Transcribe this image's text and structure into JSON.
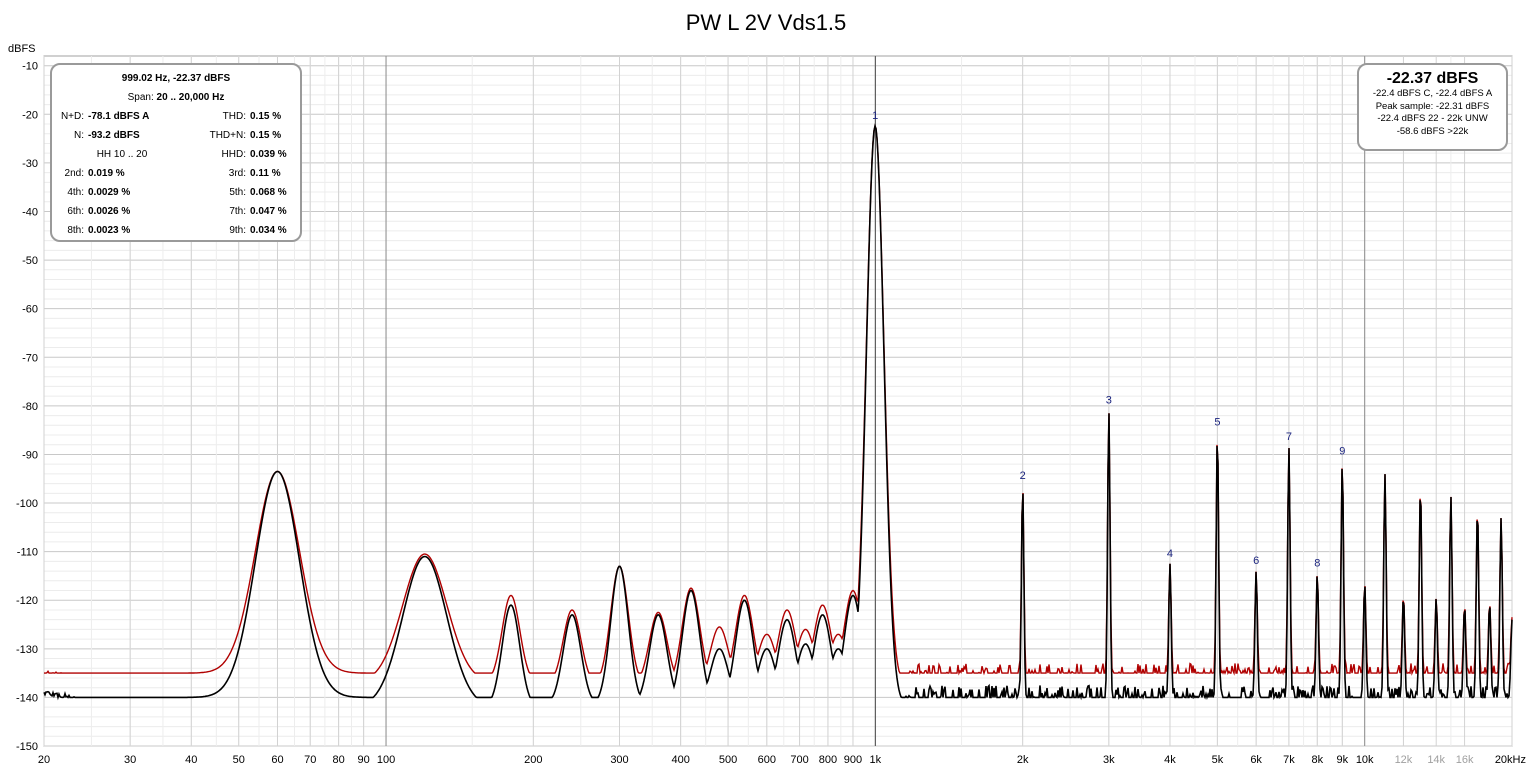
{
  "title": "PW L 2V Vds1.5",
  "chart_data": {
    "type": "line",
    "title": "PW L 2V Vds1.5",
    "ylabel": "dBFS",
    "xlabel": "",
    "x_scale": "log",
    "xlim": [
      20,
      20000
    ],
    "ylim": [
      -150,
      -8
    ],
    "grid": true,
    "y_ticks": [
      -10,
      -20,
      -30,
      -40,
      -50,
      -60,
      -70,
      -80,
      -90,
      -100,
      -110,
      -120,
      -130,
      -140,
      -150
    ],
    "x_ticks": [
      {
        "value": 20,
        "label": "20"
      },
      {
        "value": 30,
        "label": "30"
      },
      {
        "value": 40,
        "label": "40"
      },
      {
        "value": 50,
        "label": "50"
      },
      {
        "value": 60,
        "label": "60"
      },
      {
        "value": 70,
        "label": "70"
      },
      {
        "value": 80,
        "label": "80"
      },
      {
        "value": 90,
        "label": "90"
      },
      {
        "value": 100,
        "label": "100"
      },
      {
        "value": 200,
        "label": "200"
      },
      {
        "value": 300,
        "label": "300"
      },
      {
        "value": 400,
        "label": "400"
      },
      {
        "value": 500,
        "label": "500"
      },
      {
        "value": 600,
        "label": "600"
      },
      {
        "value": 700,
        "label": "700"
      },
      {
        "value": 800,
        "label": "800"
      },
      {
        "value": 900,
        "label": "900"
      },
      {
        "value": 1000,
        "label": "1k"
      },
      {
        "value": 2000,
        "label": "2k"
      },
      {
        "value": 3000,
        "label": "3k"
      },
      {
        "value": 4000,
        "label": "4k"
      },
      {
        "value": 5000,
        "label": "5k"
      },
      {
        "value": 6000,
        "label": "6k"
      },
      {
        "value": 7000,
        "label": "7k"
      },
      {
        "value": 8000,
        "label": "8k"
      },
      {
        "value": 9000,
        "label": "9k"
      },
      {
        "value": 10000,
        "label": "10k"
      },
      {
        "value": 12000,
        "label": "12k",
        "muted": true
      },
      {
        "value": 14000,
        "label": "14k",
        "muted": true
      },
      {
        "value": 16000,
        "label": "16k",
        "muted": true
      },
      {
        "value": 20000,
        "label": "20kHz"
      }
    ],
    "series": [
      {
        "color": "#b00000",
        "peaks": [
          [
            60,
            -93.5
          ],
          [
            120,
            -110.5
          ],
          [
            180,
            -119
          ],
          [
            240,
            -122
          ],
          [
            300,
            -113
          ],
          [
            360,
            -122.5
          ],
          [
            420,
            -117.5
          ],
          [
            480,
            -125.5
          ],
          [
            540,
            -119
          ],
          [
            600,
            -127
          ],
          [
            660,
            -122
          ],
          [
            720,
            -126
          ],
          [
            780,
            -121
          ],
          [
            840,
            -127
          ],
          [
            900,
            -118
          ],
          [
            999,
            -22.4
          ],
          [
            2000,
            -96.5
          ],
          [
            3000,
            -81
          ],
          [
            4000,
            -112.5
          ],
          [
            5000,
            -85.5
          ],
          [
            6000,
            -114
          ],
          [
            7000,
            -88.5
          ],
          [
            8000,
            -114.5
          ],
          [
            9000,
            -91.5
          ],
          [
            10000,
            -116.5
          ],
          [
            11000,
            -94
          ],
          [
            12000,
            -119
          ],
          [
            13000,
            -96.5
          ],
          [
            14000,
            -119.5
          ],
          [
            15000,
            -98.5
          ],
          [
            16000,
            -121
          ],
          [
            17000,
            -101
          ],
          [
            18000,
            -120.5
          ],
          [
            19000,
            -103
          ],
          [
            20000,
            -123.5
          ]
        ]
      },
      {
        "color": "#000000",
        "peaks": [
          [
            60,
            -93.5
          ],
          [
            120,
            -111
          ],
          [
            180,
            -121
          ],
          [
            240,
            -123
          ],
          [
            300,
            -113
          ],
          [
            360,
            -123
          ],
          [
            420,
            -118
          ],
          [
            480,
            -130
          ],
          [
            540,
            -120
          ],
          [
            600,
            -130
          ],
          [
            660,
            -124
          ],
          [
            720,
            -129
          ],
          [
            780,
            -123
          ],
          [
            840,
            -130
          ],
          [
            900,
            -119
          ],
          [
            999,
            -22.4
          ],
          [
            2000,
            -96.5
          ],
          [
            3000,
            -81
          ],
          [
            4000,
            -112.5
          ],
          [
            5000,
            -85.5
          ],
          [
            6000,
            -114
          ],
          [
            7000,
            -88.5
          ],
          [
            8000,
            -114.5
          ],
          [
            9000,
            -91.5
          ],
          [
            10000,
            -116.5
          ],
          [
            11000,
            -94
          ],
          [
            12000,
            -119
          ],
          [
            13000,
            -96.5
          ],
          [
            14000,
            -119.5
          ],
          [
            15000,
            -98.5
          ],
          [
            16000,
            -121
          ],
          [
            17000,
            -101
          ],
          [
            18000,
            -120.5
          ],
          [
            19000,
            -103
          ],
          [
            20000,
            -124
          ]
        ]
      }
    ],
    "harmonic_labels": [
      {
        "label": "1",
        "freq": 999,
        "level": -22.4
      },
      {
        "label": "2",
        "freq": 2000,
        "level": -96.5
      },
      {
        "label": "3",
        "freq": 3000,
        "level": -81
      },
      {
        "label": "4",
        "freq": 4000,
        "level": -112.5
      },
      {
        "label": "5",
        "freq": 5000,
        "level": -85.5
      },
      {
        "label": "6",
        "freq": 6000,
        "level": -114
      },
      {
        "label": "7",
        "freq": 7000,
        "level": -88.5
      },
      {
        "label": "8",
        "freq": 8000,
        "level": -114.5
      },
      {
        "label": "9",
        "freq": 9000,
        "level": -91.5
      }
    ],
    "cursor_freq": 1000
  },
  "info_left": {
    "header": "999.02 Hz, -22.37 dBFS",
    "span_label": "Span:",
    "span_value": "20 .. 20,000 Hz",
    "rows": [
      {
        "l1": "N+D:",
        "v1": "-78.1 dBFS A",
        "l2": "THD:",
        "v2": "0.15 %"
      },
      {
        "l1": "N:",
        "v1": "-93.2 dBFS",
        "l2": "THD+N:",
        "v2": "0.15 %"
      },
      {
        "l1": "HH 10 .. 20",
        "v1": "",
        "l2": "HHD:",
        "v2": "0.039 %"
      },
      {
        "l1": "2nd:",
        "v1": "0.019 %",
        "l2": "3rd:",
        "v2": "0.11 %"
      },
      {
        "l1": "4th:",
        "v1": "0.0029 %",
        "l2": "5th:",
        "v2": "0.068 %"
      },
      {
        "l1": "6th:",
        "v1": "0.0026 %",
        "l2": "7th:",
        "v2": "0.047 %"
      },
      {
        "l1": "8th:",
        "v1": "0.0023 %",
        "l2": "9th:",
        "v2": "0.034 %"
      }
    ]
  },
  "info_right": {
    "main": "-22.37 dBFS",
    "lines": [
      "-22.4 dBFS C, -22.4 dBFS A",
      "Peak sample: -22.31 dBFS",
      "-22.4 dBFS 22 - 22k UNW",
      "-58.6 dBFS >22k"
    ]
  }
}
